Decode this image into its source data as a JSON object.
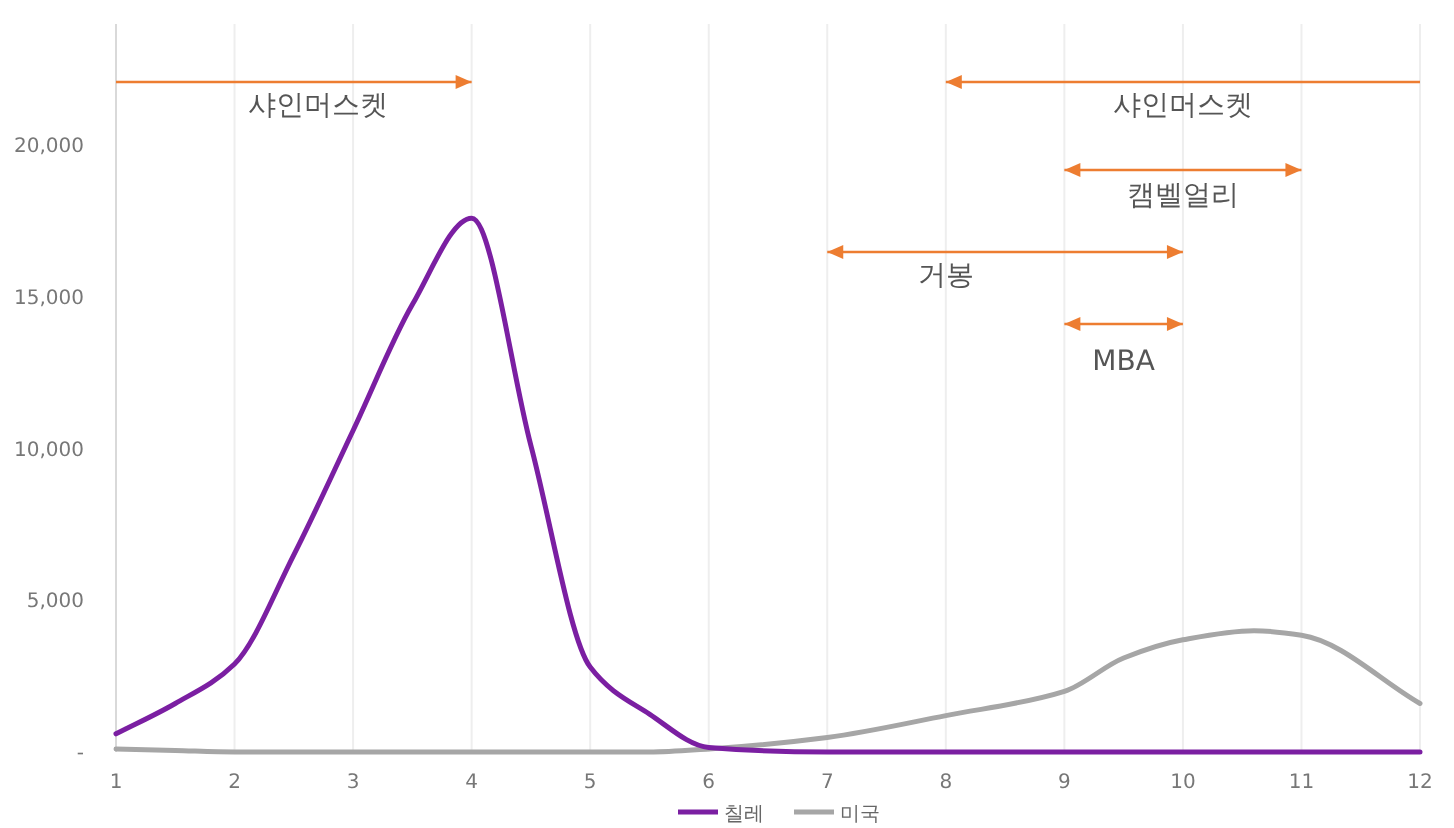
{
  "chart_data": {
    "type": "line",
    "x": [
      1,
      1.5,
      2,
      2.5,
      3,
      3.5,
      4,
      4.5,
      5,
      5.5,
      6,
      7,
      8,
      9,
      9.5,
      10,
      10.6,
      11,
      12
    ],
    "series": [
      {
        "name": "칠레",
        "color": "#7b1fa2",
        "values": [
          600,
          1600,
          2900,
          6500,
          10600,
          14750,
          17600,
          10100,
          2800,
          1250,
          150,
          0,
          0,
          0,
          0,
          0,
          0,
          0,
          0
        ]
      },
      {
        "name": "미국",
        "color": "#a6a6a6",
        "values": [
          100,
          50,
          0,
          0,
          0,
          0,
          0,
          0,
          0,
          0,
          100,
          480,
          1200,
          2000,
          3100,
          3700,
          4000,
          3850,
          1600
        ]
      }
    ],
    "xlim": [
      1,
      12
    ],
    "xticks": [
      1,
      2,
      3,
      4,
      5,
      6,
      7,
      8,
      9,
      10,
      11,
      12
    ],
    "ylim": [
      0,
      24000
    ],
    "yticks": [
      {
        "value": 0,
        "label": "-"
      },
      {
        "value": 5000,
        "label": "5,000"
      },
      {
        "value": 10000,
        "label": "10,000"
      },
      {
        "value": 15000,
        "label": "15,000"
      },
      {
        "value": 20000,
        "label": "20,000"
      }
    ],
    "grid": "x",
    "legend": "bottom",
    "marker": "none",
    "line_style": "solid",
    "annotations": [
      "샤인머스켓",
      "샤인머스켓",
      "캠벨얼리",
      "거봉",
      "MBA"
    ]
  }
}
